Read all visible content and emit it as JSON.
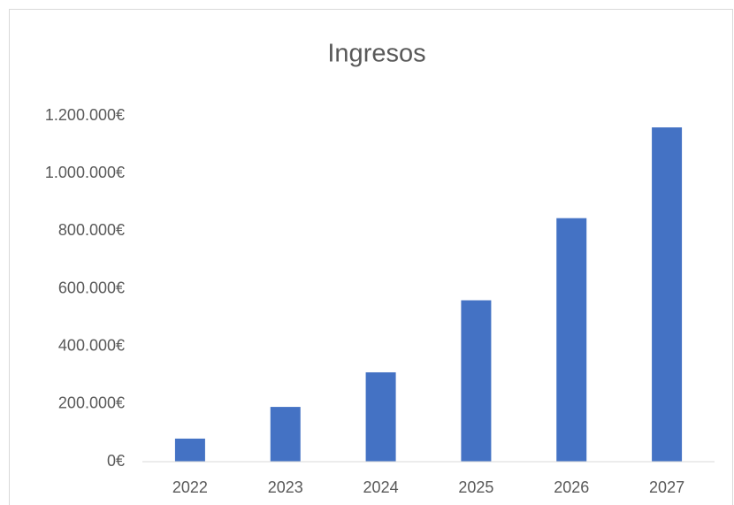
{
  "chart_data": {
    "type": "bar",
    "title": "Ingresos",
    "categories": [
      "2022",
      "2023",
      "2024",
      "2025",
      "2026",
      "2027"
    ],
    "values": [
      80000,
      190000,
      310000,
      560000,
      845000,
      1160000
    ],
    "color": "#4472c4",
    "ylim": [
      0,
      1200000
    ],
    "yticks": [
      {
        "value": 0,
        "label": "0€"
      },
      {
        "value": 200000,
        "label": "200.000€"
      },
      {
        "value": 400000,
        "label": "400.000€"
      },
      {
        "value": 600000,
        "label": "600.000€"
      },
      {
        "value": 800000,
        "label": "800.000€"
      },
      {
        "value": 1000000,
        "label": "1.000.000€"
      },
      {
        "value": 1200000,
        "label": "1.200.000€"
      }
    ],
    "grid": false
  }
}
